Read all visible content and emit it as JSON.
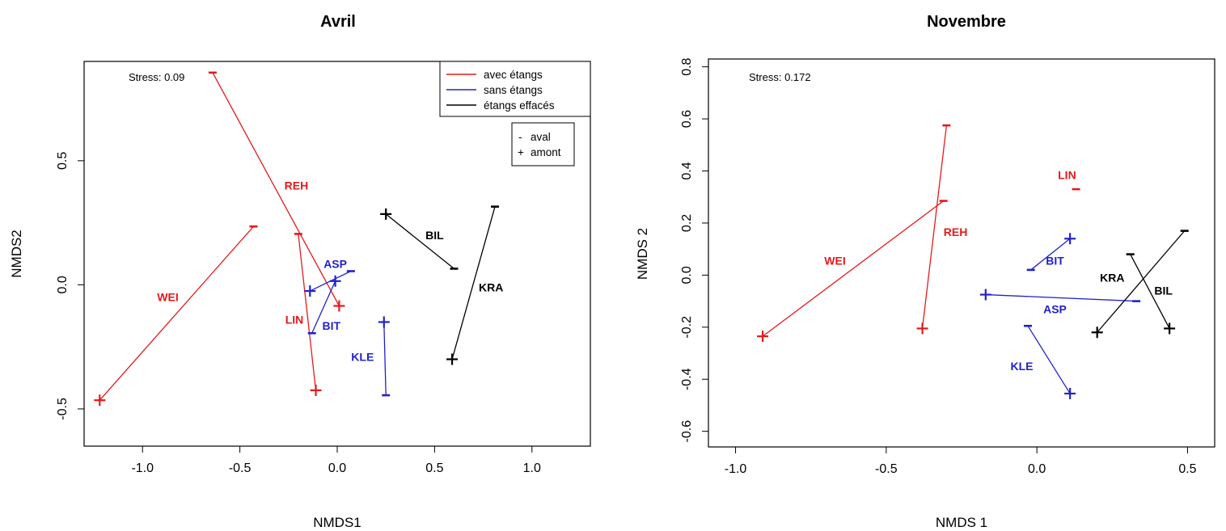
{
  "legend": {
    "groups": [
      {
        "label": "avec étangs",
        "color": "#e41a1c"
      },
      {
        "label": "sans étangs",
        "color": "#2222cc"
      },
      {
        "label": "étangs effacés",
        "color": "#000000"
      }
    ],
    "markers": [
      {
        "symbol": "-",
        "label": "aval"
      },
      {
        "symbol": "+",
        "label": "amont"
      }
    ]
  },
  "chart_data": [
    {
      "type": "scatter",
      "title": "Avril",
      "xlabel": "NMDS1",
      "ylabel": "NMDS2",
      "stress_label": "Stress: 0.09",
      "xlim": [
        -1.3,
        1.3
      ],
      "ylim": [
        -0.65,
        0.9
      ],
      "xticks": [
        "-1.0",
        "-0.5",
        "0.0",
        "0.5",
        "1.0"
      ],
      "xtick_values": [
        -1.0,
        -0.5,
        0.0,
        0.5,
        1.0
      ],
      "yticks": [
        "-0.5",
        "0.0",
        "0.5"
      ],
      "ytick_values": [
        -0.5,
        0.0,
        0.5
      ],
      "legend_position": "top-right",
      "series": [
        {
          "site": "WEI",
          "group": "avec étangs",
          "color": "#e41a1c",
          "aval": [
            -0.43,
            0.235
          ],
          "amont": [
            -1.22,
            -0.465
          ],
          "label_pos": [
            -0.87,
            -0.05
          ]
        },
        {
          "site": "REH",
          "group": "avec étangs",
          "color": "#e41a1c",
          "aval": [
            -0.64,
            0.855
          ],
          "amont": [
            0.01,
            -0.085
          ],
          "label_pos": [
            -0.21,
            0.4
          ]
        },
        {
          "site": "LIN",
          "group": "avec étangs",
          "color": "#e41a1c",
          "aval": [
            -0.2,
            0.205
          ],
          "amont": [
            -0.11,
            -0.425
          ],
          "label_pos": [
            -0.22,
            -0.14
          ]
        },
        {
          "site": "ASP",
          "group": "sans étangs",
          "color": "#2222cc",
          "aval": [
            0.07,
            0.055
          ],
          "amont": [
            -0.14,
            -0.025
          ],
          "label_pos": [
            -0.01,
            0.085
          ]
        },
        {
          "site": "BIT",
          "group": "sans étangs",
          "color": "#2222cc",
          "aval": [
            -0.13,
            -0.195
          ],
          "amont": [
            -0.01,
            0.015
          ],
          "label_pos": [
            -0.03,
            -0.165
          ]
        },
        {
          "site": "KLE",
          "group": "sans étangs",
          "color": "#2222cc",
          "aval": [
            0.25,
            -0.445
          ],
          "amont": [
            0.24,
            -0.15
          ],
          "label_pos": [
            0.13,
            -0.29
          ]
        },
        {
          "site": "BIL",
          "group": "étangs effacés",
          "color": "#000000",
          "aval": [
            0.6,
            0.065
          ],
          "amont": [
            0.25,
            0.285
          ],
          "label_pos": [
            0.5,
            0.2
          ]
        },
        {
          "site": "KRA",
          "group": "étangs effacés",
          "color": "#000000",
          "aval": [
            0.81,
            0.315
          ],
          "amont": [
            0.59,
            -0.3
          ],
          "label_pos": [
            0.79,
            -0.01
          ]
        }
      ]
    },
    {
      "type": "scatter",
      "title": "Novembre",
      "xlabel": "NMDS 1",
      "ylabel": "NMDS 2",
      "stress_label": "Stress: 0.172",
      "xlim": [
        -1.09,
        0.59
      ],
      "ylim": [
        -0.66,
        0.83
      ],
      "xticks": [
        "-1.0",
        "-0.5",
        "0.0",
        "0.5"
      ],
      "xtick_values": [
        -1.0,
        -0.5,
        0.0,
        0.5
      ],
      "yticks": [
        "-0.6",
        "-0.4",
        "-0.2",
        "0.0",
        "0.2",
        "0.4",
        "0.6",
        "0.8"
      ],
      "ytick_values": [
        -0.6,
        -0.4,
        -0.2,
        0.0,
        0.2,
        0.4,
        0.6,
        0.8
      ],
      "series": [
        {
          "site": "WEI",
          "group": "avec étangs",
          "color": "#e41a1c",
          "aval": [
            -0.31,
            0.285
          ],
          "amont": [
            -0.91,
            -0.235
          ],
          "label_pos": [
            -0.67,
            0.055
          ]
        },
        {
          "site": "REH",
          "group": "avec étangs",
          "color": "#e41a1c",
          "aval": [
            -0.3,
            0.575
          ],
          "amont": [
            -0.38,
            -0.205
          ],
          "label_pos": [
            -0.27,
            0.165
          ]
        },
        {
          "site": "LIN",
          "group": "avec étangs",
          "color": "#e41a1c",
          "aval": [
            0.13,
            0.33
          ],
          "amont": null,
          "label_pos": [
            0.1,
            0.385
          ]
        },
        {
          "site": "BIT",
          "group": "sans étangs",
          "color": "#2222cc",
          "aval": [
            -0.02,
            0.02
          ],
          "amont": [
            0.11,
            0.14
          ],
          "label_pos": [
            0.06,
            0.055
          ]
        },
        {
          "site": "ASP",
          "group": "sans étangs",
          "color": "#2222cc",
          "aval": [
            0.33,
            -0.1
          ],
          "amont": [
            -0.17,
            -0.075
          ],
          "label_pos": [
            0.06,
            -0.13
          ]
        },
        {
          "site": "KLE",
          "group": "sans étangs",
          "color": "#2222cc",
          "aval": [
            -0.03,
            -0.195
          ],
          "amont": [
            0.11,
            -0.455
          ],
          "label_pos": [
            -0.05,
            -0.35
          ]
        },
        {
          "site": "KRA",
          "group": "étangs effacés",
          "color": "#000000",
          "aval": [
            0.31,
            0.08
          ],
          "amont": [
            0.44,
            -0.205
          ],
          "label_pos": [
            0.25,
            -0.01
          ]
        },
        {
          "site": "BIL",
          "group": "étangs effacés",
          "color": "#000000",
          "aval": [
            0.49,
            0.17
          ],
          "amont": [
            0.2,
            -0.22
          ],
          "label_pos": [
            0.42,
            -0.06
          ]
        }
      ]
    }
  ]
}
